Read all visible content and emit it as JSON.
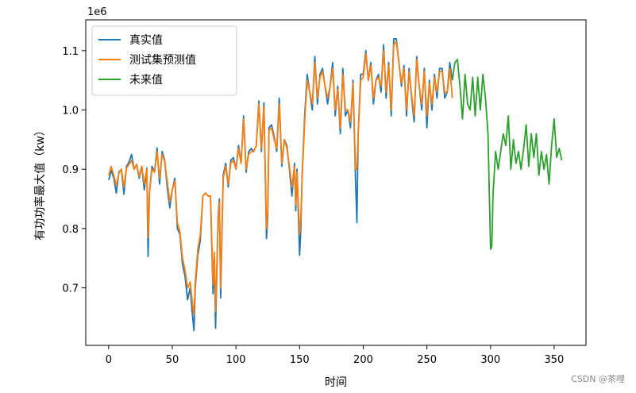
{
  "chart_data": {
    "type": "line",
    "xlabel": "时间",
    "ylabel": "有功功率最大值（kw）",
    "y_offset_label": "1e6",
    "xlim": [
      -18,
      375
    ],
    "ylim": [
      0.603,
      1.152
    ],
    "xticks": [
      0,
      50,
      100,
      150,
      200,
      250,
      300,
      350
    ],
    "yticks": [
      0.7,
      0.8,
      0.9,
      1.0,
      1.1
    ],
    "ytick_labels": [
      "0.7",
      "0.8",
      "0.9",
      "1.0",
      "1.1"
    ],
    "grid": false,
    "legend_position": "top-left",
    "series": [
      {
        "name": "真实值",
        "color": "#1f77b4",
        "x": [
          0,
          2,
          4,
          6,
          8,
          10,
          12,
          14,
          16,
          18,
          20,
          22,
          24,
          26,
          28,
          30,
          31,
          32,
          34,
          36,
          38,
          40,
          42,
          44,
          46,
          48,
          50,
          52,
          54,
          56,
          58,
          60,
          62,
          64,
          66,
          67,
          68,
          70,
          72,
          74,
          76,
          78,
          80,
          82,
          83,
          84,
          86,
          87,
          88,
          90,
          92,
          94,
          96,
          98,
          100,
          102,
          104,
          106,
          108,
          110,
          112,
          114,
          116,
          118,
          120,
          122,
          124,
          125,
          126,
          128,
          130,
          132,
          134,
          136,
          138,
          140,
          142,
          144,
          146,
          147,
          148,
          150,
          151,
          152,
          154,
          156,
          158,
          160,
          162,
          164,
          166,
          168,
          170,
          172,
          174,
          176,
          178,
          180,
          182,
          184,
          186,
          188,
          190,
          192,
          194,
          195,
          196,
          198,
          200,
          202,
          204,
          206,
          208,
          210,
          212,
          214,
          216,
          218,
          220,
          222,
          224,
          226,
          228,
          230,
          232,
          234,
          236,
          238,
          240,
          242,
          244,
          246,
          248,
          250,
          252,
          254,
          256,
          258,
          260,
          262,
          264,
          266,
          268,
          270
        ],
        "y": [
          0.882,
          0.898,
          0.885,
          0.86,
          0.895,
          0.9,
          0.858,
          0.905,
          0.912,
          0.925,
          0.9,
          0.908,
          0.885,
          0.905,
          0.865,
          0.902,
          0.753,
          0.86,
          0.905,
          0.895,
          0.936,
          0.875,
          0.93,
          0.915,
          0.87,
          0.835,
          0.865,
          0.885,
          0.8,
          0.79,
          0.74,
          0.72,
          0.68,
          0.7,
          0.65,
          0.628,
          0.7,
          0.755,
          0.78,
          0.855,
          0.86,
          0.855,
          0.855,
          0.69,
          0.75,
          0.632,
          0.82,
          0.85,
          0.683,
          0.89,
          0.91,
          0.87,
          0.915,
          0.92,
          0.9,
          0.94,
          0.91,
          0.99,
          0.895,
          0.93,
          0.935,
          0.93,
          0.94,
          1.015,
          0.93,
          1.012,
          0.783,
          0.82,
          0.97,
          0.975,
          0.955,
          0.93,
          1.02,
          0.905,
          0.95,
          0.94,
          0.9,
          0.855,
          0.91,
          0.83,
          0.9,
          0.755,
          0.8,
          0.89,
          0.99,
          1.06,
          1.03,
          1.0,
          1.09,
          1.01,
          1.06,
          1.07,
          1.04,
          1.01,
          1.04,
          1.08,
          0.99,
          1.04,
          0.96,
          1.07,
          0.99,
          1.0,
          0.97,
          1.05,
          0.88,
          0.81,
          0.96,
          1.06,
          1.06,
          1.1,
          1.05,
          1.08,
          1.01,
          1.05,
          1.06,
          1.03,
          1.11,
          1.02,
          1.08,
          0.99,
          1.12,
          1.12,
          1.08,
          1.04,
          1.075,
          0.99,
          1.07,
          1.02,
          0.98,
          1.09,
          1.04,
          1.0,
          1.07,
          0.97,
          1.05,
          1.0,
          1.06,
          1.02,
          1.07,
          1.07,
          1.02,
          1.03,
          1.08,
          1.05
        ]
      },
      {
        "name": "测试集预测值",
        "color": "#ff7f0e",
        "x": [
          0,
          2,
          4,
          6,
          8,
          10,
          12,
          14,
          16,
          18,
          20,
          22,
          24,
          26,
          28,
          30,
          31,
          32,
          34,
          36,
          38,
          40,
          42,
          44,
          46,
          48,
          50,
          52,
          54,
          56,
          58,
          60,
          62,
          64,
          66,
          67,
          68,
          70,
          72,
          74,
          76,
          78,
          80,
          82,
          83,
          84,
          86,
          87,
          88,
          90,
          92,
          94,
          96,
          98,
          100,
          102,
          104,
          106,
          108,
          110,
          112,
          114,
          116,
          118,
          120,
          122,
          124,
          125,
          126,
          128,
          130,
          132,
          134,
          136,
          138,
          140,
          142,
          144,
          146,
          147,
          148,
          150,
          151,
          152,
          154,
          156,
          158,
          160,
          162,
          164,
          166,
          168,
          170,
          172,
          174,
          176,
          178,
          180,
          182,
          184,
          186,
          188,
          190,
          192,
          194,
          195,
          196,
          198,
          200,
          202,
          204,
          206,
          208,
          210,
          212,
          214,
          216,
          218,
          220,
          222,
          224,
          226,
          228,
          230,
          232,
          234,
          236,
          238,
          240,
          242,
          244,
          246,
          248,
          250,
          252,
          254,
          256,
          258,
          260,
          262,
          264,
          266,
          268,
          270
        ],
        "y": [
          0.89,
          0.905,
          0.89,
          0.872,
          0.893,
          0.9,
          0.87,
          0.902,
          0.908,
          0.915,
          0.9,
          0.908,
          0.888,
          0.905,
          0.875,
          0.9,
          0.785,
          0.86,
          0.9,
          0.895,
          0.93,
          0.885,
          0.925,
          0.913,
          0.88,
          0.845,
          0.865,
          0.88,
          0.81,
          0.795,
          0.75,
          0.73,
          0.7,
          0.71,
          0.67,
          0.655,
          0.71,
          0.765,
          0.79,
          0.855,
          0.86,
          0.855,
          0.855,
          0.705,
          0.76,
          0.66,
          0.815,
          0.845,
          0.7,
          0.885,
          0.905,
          0.875,
          0.91,
          0.915,
          0.9,
          0.935,
          0.91,
          0.985,
          0.9,
          0.925,
          0.93,
          0.93,
          0.94,
          1.01,
          0.935,
          1.005,
          0.8,
          0.83,
          0.965,
          0.97,
          0.95,
          0.935,
          1.01,
          0.91,
          0.95,
          0.935,
          0.905,
          0.87,
          0.905,
          0.84,
          0.895,
          0.79,
          0.82,
          0.885,
          0.98,
          1.05,
          1.03,
          1.01,
          1.08,
          1.02,
          1.055,
          1.065,
          1.04,
          1.02,
          1.04,
          1.07,
          1.0,
          1.035,
          0.97,
          1.06,
          1.0,
          1.0,
          0.98,
          1.045,
          0.9,
          0.9,
          0.96,
          1.05,
          1.055,
          1.095,
          1.05,
          1.075,
          1.02,
          1.05,
          1.055,
          1.04,
          1.1,
          1.03,
          1.075,
          1.0,
          1.11,
          1.115,
          1.08,
          1.045,
          1.07,
          1.0,
          1.065,
          1.025,
          0.99,
          1.085,
          1.04,
          1.01,
          1.065,
          0.99,
          1.045,
          1.01,
          1.055,
          1.03,
          1.065,
          1.065,
          1.03,
          1.03,
          1.07,
          1.02
        ]
      },
      {
        "name": "未来值",
        "color": "#2ca02c",
        "x": [
          270,
          272,
          274,
          276,
          278,
          280,
          282,
          284,
          286,
          288,
          290,
          292,
          294,
          296,
          298,
          300,
          301,
          302,
          304,
          306,
          308,
          310,
          312,
          314,
          316,
          318,
          320,
          322,
          324,
          326,
          328,
          330,
          332,
          334,
          336,
          338,
          340,
          342,
          344,
          346,
          348,
          350,
          352,
          354,
          356
        ],
        "y": [
          1.05,
          1.08,
          1.085,
          1.04,
          0.985,
          1.06,
          1.01,
          1.0,
          1.055,
          0.99,
          1.055,
          1.0,
          1.06,
          1.02,
          0.96,
          0.765,
          0.77,
          0.86,
          0.93,
          0.9,
          0.93,
          0.96,
          0.94,
          0.99,
          0.9,
          0.95,
          0.91,
          0.93,
          0.9,
          0.935,
          0.975,
          0.905,
          0.96,
          0.92,
          0.96,
          0.89,
          0.93,
          0.9,
          0.925,
          0.875,
          0.94,
          0.985,
          0.92,
          0.935,
          0.915
        ]
      }
    ]
  },
  "watermark": "CSDN @茶哩"
}
